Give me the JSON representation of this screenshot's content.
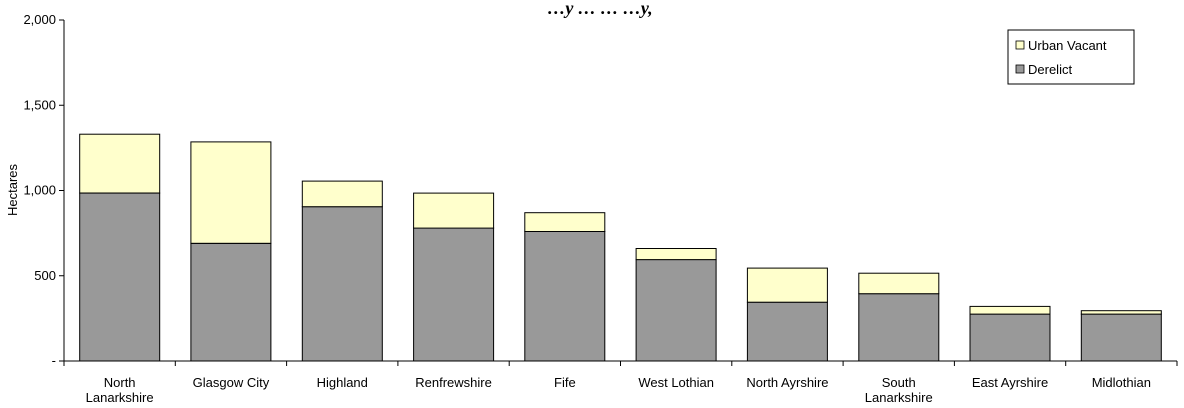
{
  "chart_data": {
    "type": "bar",
    "stacked": true,
    "title": "…y … … …y,",
    "ylabel": "Hectares",
    "xlabel": "",
    "ylim": [
      0,
      2000
    ],
    "yticks": [
      "-",
      "500",
      "1,000",
      "1,500",
      "2,000"
    ],
    "yticks_values": [
      0,
      500,
      1000,
      1500,
      2000
    ],
    "categories": [
      "North Lanarkshire",
      "Glasgow City",
      "Highland",
      "Renfrewshire",
      "Fife",
      "West Lothian",
      "North Ayrshire",
      "South Lanarkshire",
      "East Ayrshire",
      "Midlothian"
    ],
    "category_lines": [
      [
        "North",
        "Lanarkshire"
      ],
      [
        "Glasgow City"
      ],
      [
        "Highland"
      ],
      [
        "Renfrewshire"
      ],
      [
        "Fife"
      ],
      [
        "West Lothian"
      ],
      [
        "North Ayrshire"
      ],
      [
        "South",
        "Lanarkshire"
      ],
      [
        "East Ayrshire"
      ],
      [
        "Midlothian"
      ]
    ],
    "series": [
      {
        "name": "Derelict",
        "color": "#999999",
        "values": [
          985,
          690,
          905,
          780,
          760,
          595,
          345,
          395,
          275,
          275
        ]
      },
      {
        "name": "Urban Vacant",
        "color": "#ffffcc",
        "values": [
          345,
          595,
          150,
          205,
          110,
          65,
          200,
          120,
          45,
          20
        ]
      }
    ],
    "legend": {
      "placement": "top-right",
      "entries": [
        "Urban Vacant",
        "Derelict"
      ]
    },
    "grid": false
  }
}
